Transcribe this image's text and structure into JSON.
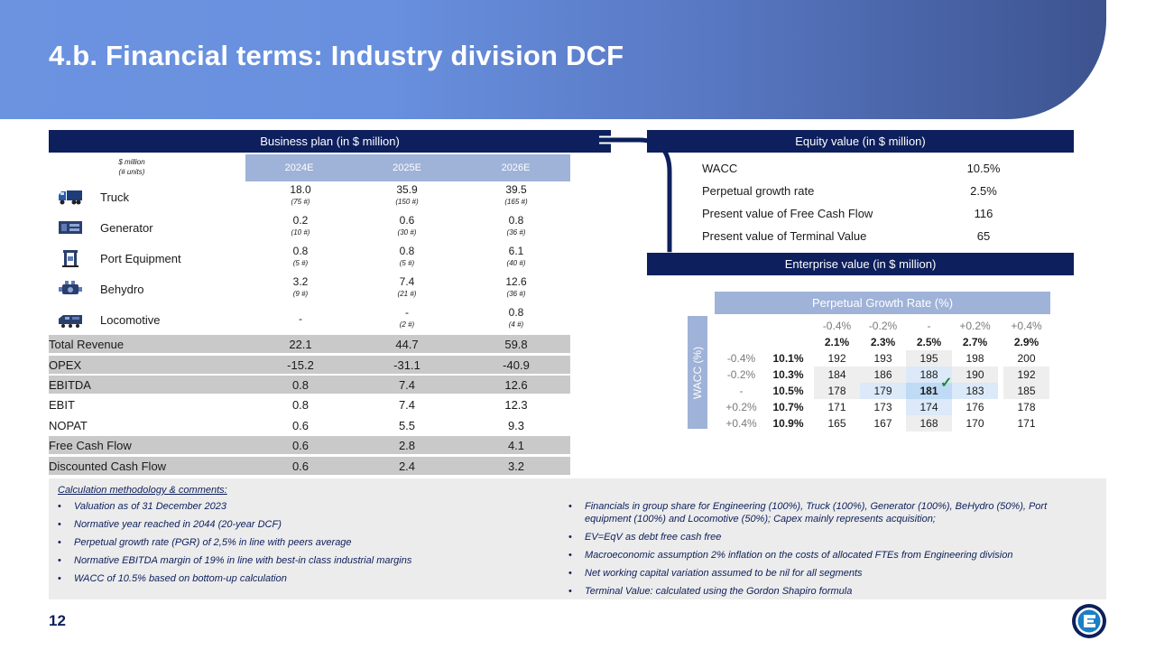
{
  "title": "4.b. Financial terms: Industry division DCF",
  "business_plan": {
    "header": "Business plan (in $ million)",
    "units_line1": "$ million",
    "units_line2": "(# units)",
    "years": [
      "2024E",
      "2025E",
      "2026E"
    ],
    "products": [
      {
        "name": "Truck",
        "icon": "truck-icon",
        "values": [
          "18.0",
          "35.9",
          "39.5"
        ],
        "units": [
          "(75 #)",
          "(150 #)",
          "(165 #)"
        ]
      },
      {
        "name": "Generator",
        "icon": "generator-icon",
        "values": [
          "0.2",
          "0.6",
          "0.8"
        ],
        "units": [
          "(10 #)",
          "(30 #)",
          "(36 #)"
        ]
      },
      {
        "name": "Port Equipment",
        "icon": "port-crane-icon",
        "values": [
          "0.8",
          "0.8",
          "6.1"
        ],
        "units": [
          "(5 #)",
          "(5 #)",
          "(40 #)"
        ]
      },
      {
        "name": "Behydro",
        "icon": "engine-icon",
        "values": [
          "3.2",
          "7.4",
          "12.6"
        ],
        "units": [
          "(9 #)",
          "(21 #)",
          "(36 #)"
        ]
      },
      {
        "name": "Locomotive",
        "icon": "locomotive-icon",
        "values": [
          "-",
          "-",
          "0.8"
        ],
        "units": [
          "",
          "(2 #)",
          "(4 #)"
        ]
      }
    ],
    "totals": [
      {
        "label": "Total Revenue",
        "values": [
          "22.1",
          "44.7",
          "59.8"
        ]
      },
      {
        "label": "OPEX",
        "values": [
          "-15.2",
          "-31.1",
          "-40.9"
        ]
      },
      {
        "label": "EBITDA",
        "values": [
          "0.8",
          "7.4",
          "12.6"
        ]
      },
      {
        "label": "EBIT",
        "values": [
          "0.8",
          "7.4",
          "12.3"
        ]
      },
      {
        "label": "NOPAT",
        "values": [
          "0.6",
          "5.5",
          "9.3"
        ]
      },
      {
        "label": "Free Cash Flow",
        "values": [
          "0.6",
          "2.8",
          "4.1"
        ]
      },
      {
        "label": "Discounted Cash Flow",
        "values": [
          "0.6",
          "2.4",
          "3.2"
        ]
      }
    ]
  },
  "equity": {
    "header": "Equity value (in $ million)",
    "rows": [
      {
        "label": "WACC",
        "value": "10.5%"
      },
      {
        "label": "Perpetual growth rate",
        "value": "2.5%"
      },
      {
        "label": "Present value of Free Cash Flow",
        "value": "116"
      },
      {
        "label": "Present value of Terminal Value",
        "value": "65"
      }
    ]
  },
  "enterprise": {
    "header": "Enterprise value (in $ million)",
    "pgr_header": "Perpetual Growth Rate (%)",
    "wacc_label": "WACC (%)",
    "pgr_deltas": [
      "-0.4%",
      "-0.2%",
      "-",
      "+0.2%",
      "+0.4%"
    ],
    "pgr_values": [
      "2.1%",
      "2.3%",
      "2.5%",
      "2.7%",
      "2.9%"
    ],
    "wacc_deltas": [
      "-0.4%",
      "-0.2%",
      "-",
      "+0.2%",
      "+0.4%"
    ],
    "wacc_values": [
      "10.1%",
      "10.3%",
      "10.5%",
      "10.7%",
      "10.9%"
    ],
    "grid": [
      [
        "192",
        "193",
        "195",
        "198",
        "200"
      ],
      [
        "184",
        "186",
        "188",
        "190",
        "192"
      ],
      [
        "178",
        "179",
        "181",
        "183",
        "185"
      ],
      [
        "171",
        "173",
        "174",
        "176",
        "178"
      ],
      [
        "165",
        "167",
        "168",
        "170",
        "171"
      ]
    ],
    "check_mark": "✓"
  },
  "comments": {
    "title": "Calculation methodology & comments:",
    "left": [
      "Valuation as of 31 December 2023",
      "Normative year reached in 2044 (20-year DCF)",
      "Perpetual growth rate (PGR) of 2,5% in line with peers average",
      "Normative EBITDA margin of 19% in line with best-in class industrial margins",
      "WACC of 10.5% based on bottom-up calculation"
    ],
    "right": [
      "Financials in group share for Engineering (100%), Truck (100%), Generator (100%), BeHydro (50%), Port equipment (100%) and Locomotive (50%); Capex mainly represents acquisition;",
      "EV=EqV as debt free cash free",
      "Macroeconomic assumption 2% inflation on the costs of allocated FTEs from Engineering division",
      "Net working capital variation assumed to be nil for all segments",
      "Terminal Value: calculated using the Gordon Shapiro formula"
    ]
  },
  "page_number": "12",
  "colors": {
    "navy": "#0d1f5c",
    "header_blue": "#9fb2d8",
    "banner_start": "#6b93e0",
    "banner_end": "#3c538f",
    "highlight": "#bfdaf5",
    "check": "#1f8a3a"
  }
}
